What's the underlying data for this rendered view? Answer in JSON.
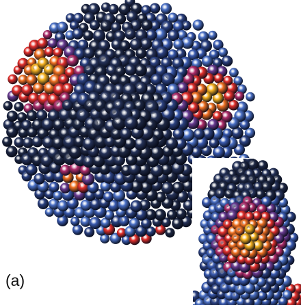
{
  "panel": {
    "label": "(a)"
  }
}
